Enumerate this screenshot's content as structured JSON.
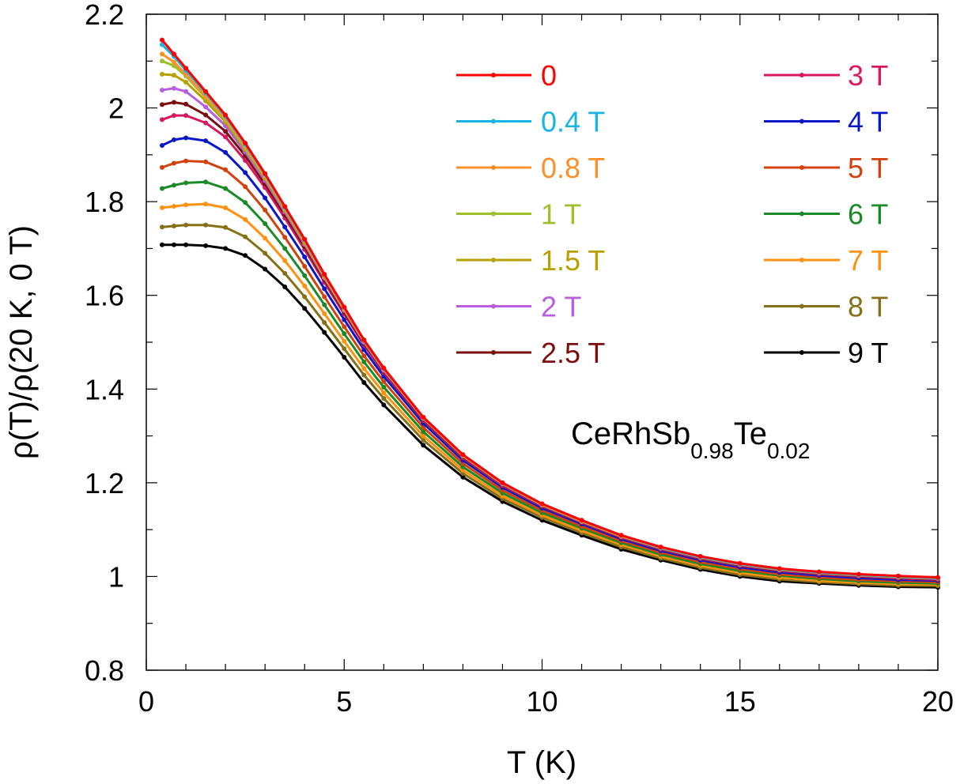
{
  "chart_data": {
    "type": "line",
    "title": "",
    "xlabel": "T (K)",
    "ylabel": "ρ(T)/ρ(20 K, 0 T)",
    "xlim": [
      0,
      20
    ],
    "ylim": [
      0.8,
      2.2
    ],
    "x_ticks": [
      0,
      5,
      10,
      15,
      20
    ],
    "y_ticks": [
      0.8,
      1,
      1.2,
      1.4,
      1.6,
      1.8,
      2,
      2.2
    ],
    "x_tick_labels": [
      "0",
      "5",
      "10",
      "15",
      "20"
    ],
    "y_tick_labels": [
      "0.8",
      "1",
      "1.2",
      "1.4",
      "1.6",
      "1.8",
      "2",
      "2.2"
    ],
    "grid": false,
    "legend_position": "top-right",
    "annotation": {
      "main1": "CeRhSb",
      "sub1": "0.98",
      "main2": "Te",
      "sub2": "0.02"
    },
    "x": [
      0.4,
      0.7,
      1,
      1.5,
      2,
      2.5,
      3,
      3.5,
      4,
      4.5,
      5,
      5.5,
      6,
      7,
      8,
      9,
      10,
      11,
      12,
      13,
      14,
      15,
      16,
      17,
      18,
      19,
      20
    ],
    "series": [
      {
        "name": "0",
        "color": "#ff0000",
        "values": [
          2.145,
          2.115,
          2.085,
          2.035,
          1.985,
          1.925,
          1.86,
          1.79,
          1.72,
          1.645,
          1.575,
          1.505,
          1.445,
          1.34,
          1.26,
          1.2,
          1.155,
          1.12,
          1.088,
          1.063,
          1.043,
          1.028,
          1.017,
          1.01,
          1.005,
          1.001,
          0.998
        ]
      },
      {
        "name": "0.4 T",
        "color": "#18b4e6",
        "values": [
          2.135,
          2.11,
          2.08,
          2.032,
          1.982,
          1.922,
          1.858,
          1.788,
          1.718,
          1.644,
          1.574,
          1.504,
          1.444,
          1.34,
          1.26,
          1.2,
          1.155,
          1.12,
          1.088,
          1.062,
          1.042,
          1.027,
          1.016,
          1.009,
          1.004,
          1.0,
          0.997
        ]
      },
      {
        "name": "0.8 T",
        "color": "#ff9028",
        "values": [
          2.115,
          2.098,
          2.072,
          2.025,
          1.978,
          1.918,
          1.855,
          1.786,
          1.716,
          1.642,
          1.572,
          1.503,
          1.443,
          1.339,
          1.259,
          1.199,
          1.154,
          1.119,
          1.087,
          1.062,
          1.042,
          1.027,
          1.016,
          1.009,
          1.004,
          1.0,
          0.997
        ]
      },
      {
        "name": "1 T",
        "color": "#9dc02a",
        "values": [
          2.1,
          2.09,
          2.068,
          2.022,
          1.975,
          1.915,
          1.853,
          1.785,
          1.715,
          1.642,
          1.572,
          1.503,
          1.443,
          1.339,
          1.259,
          1.199,
          1.154,
          1.119,
          1.087,
          1.062,
          1.042,
          1.027,
          1.016,
          1.009,
          1.004,
          1.0,
          0.997
        ]
      },
      {
        "name": "1.5 T",
        "color": "#b8a000",
        "values": [
          2.072,
          2.07,
          2.055,
          2.015,
          1.97,
          1.912,
          1.85,
          1.782,
          1.712,
          1.64,
          1.57,
          1.502,
          1.442,
          1.338,
          1.258,
          1.198,
          1.153,
          1.118,
          1.086,
          1.061,
          1.041,
          1.026,
          1.015,
          1.008,
          1.003,
          0.999,
          0.996
        ]
      },
      {
        "name": "2 T",
        "color": "#b85de0",
        "values": [
          2.038,
          2.042,
          2.035,
          2.002,
          1.962,
          1.906,
          1.845,
          1.778,
          1.709,
          1.637,
          1.568,
          1.5,
          1.44,
          1.337,
          1.257,
          1.197,
          1.152,
          1.117,
          1.085,
          1.06,
          1.04,
          1.025,
          1.014,
          1.007,
          1.002,
          0.998,
          0.995
        ]
      },
      {
        "name": "2.5 T",
        "color": "#7a0f0f",
        "values": [
          2.007,
          2.012,
          2.008,
          1.985,
          1.95,
          1.898,
          1.838,
          1.772,
          1.704,
          1.633,
          1.564,
          1.497,
          1.438,
          1.335,
          1.255,
          1.196,
          1.151,
          1.116,
          1.084,
          1.059,
          1.039,
          1.024,
          1.013,
          1.006,
          1.001,
          0.997,
          0.994
        ]
      },
      {
        "name": "3 T",
        "color": "#d8185e",
        "values": [
          1.975,
          1.984,
          1.984,
          1.968,
          1.938,
          1.888,
          1.83,
          1.765,
          1.698,
          1.628,
          1.56,
          1.494,
          1.435,
          1.333,
          1.253,
          1.194,
          1.15,
          1.115,
          1.083,
          1.058,
          1.038,
          1.023,
          1.012,
          1.005,
          1.0,
          0.996,
          0.993
        ]
      },
      {
        "name": "4 T",
        "color": "#0a17c8",
        "values": [
          1.92,
          1.932,
          1.936,
          1.93,
          1.905,
          1.862,
          1.808,
          1.746,
          1.682,
          1.614,
          1.548,
          1.484,
          1.427,
          1.327,
          1.248,
          1.19,
          1.146,
          1.112,
          1.08,
          1.055,
          1.035,
          1.02,
          1.009,
          1.002,
          0.997,
          0.993,
          0.991
        ]
      },
      {
        "name": "5 T",
        "color": "#d2420e",
        "values": [
          1.873,
          1.882,
          1.887,
          1.885,
          1.868,
          1.832,
          1.782,
          1.724,
          1.662,
          1.597,
          1.533,
          1.471,
          1.416,
          1.318,
          1.241,
          1.184,
          1.141,
          1.107,
          1.076,
          1.051,
          1.031,
          1.016,
          1.005,
          0.998,
          0.993,
          0.99,
          0.988
        ]
      },
      {
        "name": "6 T",
        "color": "#1a8a26",
        "values": [
          1.828,
          1.835,
          1.84,
          1.842,
          1.828,
          1.798,
          1.753,
          1.7,
          1.642,
          1.58,
          1.518,
          1.458,
          1.404,
          1.309,
          1.234,
          1.178,
          1.136,
          1.103,
          1.072,
          1.047,
          1.027,
          1.012,
          1.002,
          0.995,
          0.99,
          0.987,
          0.985
        ]
      },
      {
        "name": "7 T",
        "color": "#ff9010",
        "values": [
          1.787,
          1.79,
          1.793,
          1.795,
          1.787,
          1.762,
          1.722,
          1.674,
          1.62,
          1.561,
          1.502,
          1.444,
          1.392,
          1.3,
          1.227,
          1.172,
          1.131,
          1.098,
          1.068,
          1.043,
          1.023,
          1.008,
          0.998,
          0.991,
          0.987,
          0.984,
          0.983
        ]
      },
      {
        "name": "8 T",
        "color": "#857018",
        "values": [
          1.746,
          1.748,
          1.75,
          1.75,
          1.745,
          1.725,
          1.69,
          1.647,
          1.597,
          1.542,
          1.486,
          1.43,
          1.38,
          1.291,
          1.22,
          1.166,
          1.126,
          1.093,
          1.063,
          1.039,
          1.019,
          1.004,
          0.994,
          0.988,
          0.984,
          0.981,
          0.98
        ]
      },
      {
        "name": "9 T",
        "color": "#000000",
        "values": [
          1.708,
          1.708,
          1.708,
          1.706,
          1.7,
          1.685,
          1.656,
          1.618,
          1.572,
          1.521,
          1.468,
          1.414,
          1.366,
          1.28,
          1.212,
          1.16,
          1.12,
          1.088,
          1.058,
          1.035,
          1.015,
          1.0,
          0.99,
          0.985,
          0.981,
          0.978,
          0.977
        ]
      }
    ]
  }
}
